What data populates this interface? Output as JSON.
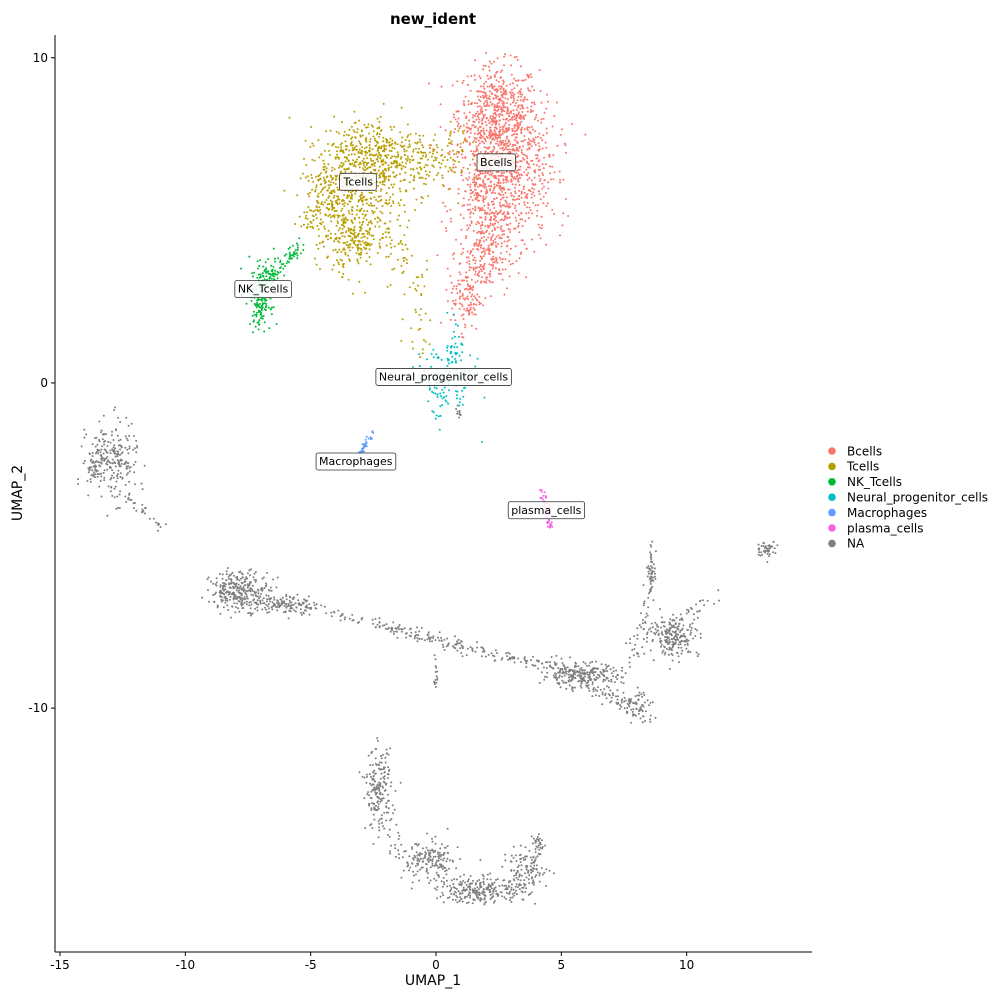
{
  "chart_data": {
    "type": "scatter",
    "title": "new_ident",
    "xlabel": "UMAP_1",
    "ylabel": "UMAP_2",
    "xlim": [
      -15.2,
      15.0
    ],
    "ylim": [
      -17.5,
      10.7
    ],
    "xticks": [
      -15,
      -10,
      -5,
      0,
      5,
      10
    ],
    "yticks": [
      10,
      0,
      -10
    ],
    "grid": false,
    "legend_position": "right",
    "series": [
      {
        "name": "Bcells",
        "color": "#F8766D"
      },
      {
        "name": "Tcells",
        "color": "#B79F00"
      },
      {
        "name": "NK_Tcells",
        "color": "#00BA38"
      },
      {
        "name": "Neural_progenitor_cells",
        "color": "#00BFC4"
      },
      {
        "name": "Macrophages",
        "color": "#619CFF"
      },
      {
        "name": "plasma_cells",
        "color": "#F564E3"
      },
      {
        "name": "NA",
        "color": "#7F7F7F"
      }
    ],
    "cluster_labels": [
      {
        "text": "Bcells",
        "x": 2.4,
        "y": 6.8
      },
      {
        "text": "Tcells",
        "x": -3.1,
        "y": 6.2
      },
      {
        "text": "NK_Tcells",
        "x": -6.9,
        "y": 2.9
      },
      {
        "text": "Neural_progenitor_cells",
        "x": 0.3,
        "y": 0.2
      },
      {
        "text": "Macrophages",
        "x": -3.2,
        "y": -2.4
      },
      {
        "text": "plasma_cells",
        "x": 4.4,
        "y": -3.9
      }
    ]
  }
}
